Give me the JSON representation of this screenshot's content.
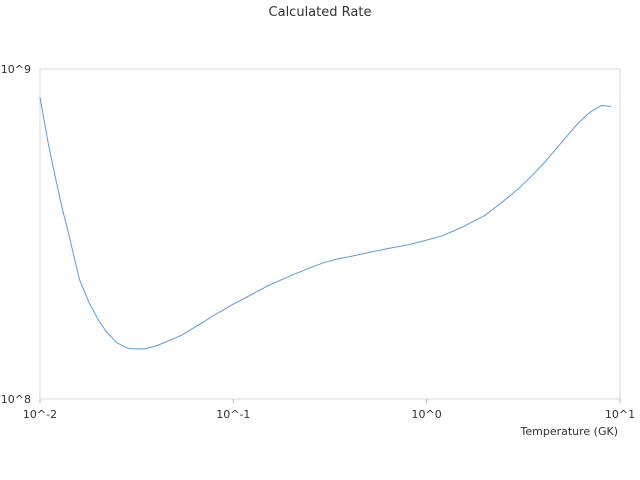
{
  "chart_data": {
    "type": "line",
    "title": "Calculated Rate",
    "xlabel": "Temperature (GK)",
    "ylabel": "",
    "x_scale": "log",
    "y_scale": "log",
    "xlim": [
      0.01,
      10
    ],
    "ylim": [
      100000000,
      1000000000
    ],
    "x_ticks": [
      {
        "value": 0.01,
        "label": "10^-2"
      },
      {
        "value": 0.1,
        "label": "10^-1"
      },
      {
        "value": 1,
        "label": "10^0"
      },
      {
        "value": 10,
        "label": "10^1"
      }
    ],
    "y_ticks": [
      {
        "value": 100000000,
        "label": "10^8"
      },
      {
        "value": 1000000000,
        "label": "10^9"
      }
    ],
    "grid": false,
    "legend": "none",
    "series": [
      {
        "color": "#5a9bd8",
        "x": [
          0.01,
          0.011,
          0.012,
          0.013,
          0.014,
          0.015,
          0.016,
          0.018,
          0.02,
          0.022,
          0.025,
          0.028,
          0.03,
          0.032,
          0.035,
          0.04,
          0.045,
          0.05,
          0.055,
          0.06,
          0.07,
          0.08,
          0.09,
          0.1,
          0.12,
          0.15,
          0.2,
          0.25,
          0.3,
          0.35,
          0.4,
          0.5,
          0.6,
          0.7,
          0.8,
          1.0,
          1.2,
          1.5,
          2.0,
          2.5,
          3.0,
          3.5,
          4.0,
          5.0,
          6.0,
          7.0,
          8.0,
          9.0
        ],
        "y": [
          820000000,
          600000000,
          470000000,
          380000000,
          320000000,
          270000000,
          230000000,
          195000000,
          174000000,
          160000000,
          148000000,
          143000000,
          142000000,
          141700000,
          142000000,
          145000000,
          149000000,
          153000000,
          157000000,
          162000000,
          171000000,
          180000000,
          187000000,
          194000000,
          205000000,
          220000000,
          237000000,
          250000000,
          260000000,
          266000000,
          270000000,
          278000000,
          284000000,
          289000000,
          293000000,
          303000000,
          312000000,
          330000000,
          360000000,
          398000000,
          435000000,
          475000000,
          515000000,
          600000000,
          680000000,
          740000000,
          775000000,
          770000000
        ]
      }
    ]
  }
}
